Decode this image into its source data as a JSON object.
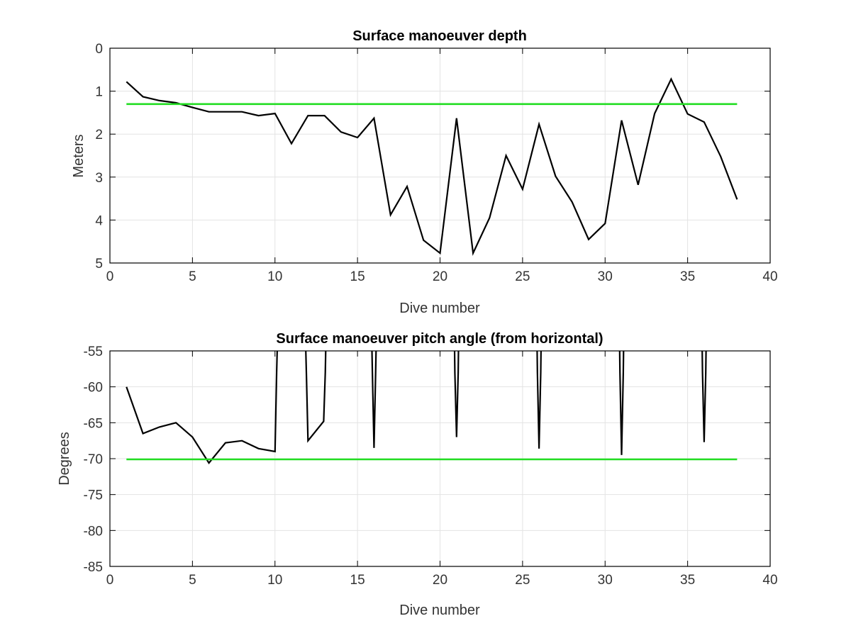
{
  "chart_data": [
    {
      "type": "line",
      "title": "Surface manoeuver depth",
      "xlabel": "Dive number",
      "ylabel": "Meters",
      "xlim": [
        0,
        40
      ],
      "ylim": [
        0,
        5
      ],
      "y_reversed": true,
      "grid": true,
      "xticks": [
        "0",
        "5",
        "10",
        "15",
        "20",
        "25",
        "30",
        "35",
        "40"
      ],
      "yticks": [
        "0",
        "1",
        "2",
        "3",
        "4",
        "5"
      ],
      "series": [
        {
          "color": "#000000",
          "x": [
            1,
            2,
            3,
            4,
            5,
            6,
            7,
            8,
            9,
            10,
            11,
            12,
            13,
            14,
            15,
            16,
            17,
            18,
            19,
            20,
            21,
            22,
            23,
            24,
            25,
            26,
            27,
            28,
            29,
            30,
            31,
            32,
            33,
            34,
            35,
            36,
            37,
            38
          ],
          "y": [
            0.78,
            1.13,
            1.22,
            1.27,
            1.38,
            1.48,
            1.48,
            1.48,
            1.57,
            1.52,
            2.22,
            1.57,
            1.57,
            1.95,
            2.08,
            1.63,
            3.88,
            3.22,
            4.47,
            4.77,
            1.63,
            4.77,
            3.95,
            2.5,
            3.28,
            1.77,
            2.98,
            3.58,
            4.45,
            4.08,
            1.68,
            3.18,
            1.52,
            0.72,
            1.53,
            1.72,
            2.52,
            3.52
          ]
        },
        {
          "color": "#22dd22",
          "x": [
            1,
            38
          ],
          "y": [
            1.3,
            1.3
          ]
        }
      ]
    },
    {
      "type": "line",
      "title": "Surface manoeuver pitch angle (from horizontal)",
      "xlabel": "Dive number",
      "ylabel": "Degrees",
      "xlim": [
        0,
        40
      ],
      "ylim": [
        -85,
        -55
      ],
      "grid": true,
      "xticks": [
        "0",
        "5",
        "10",
        "15",
        "20",
        "25",
        "30",
        "35",
        "40"
      ],
      "yticks": [
        "-55",
        "-60",
        "-65",
        "-70",
        "-75",
        "-80",
        "-85"
      ],
      "series": [
        {
          "color": "#000000",
          "x": [
            1,
            2,
            3,
            4,
            5,
            6,
            7,
            8,
            9,
            10,
            10.1,
            10.3,
            11.7,
            11.9,
            12,
            12.95,
            13.05,
            13.2,
            15.75,
            15.9,
            16,
            16.1,
            16.25,
            20.8,
            20.9,
            21,
            21.1,
            21.2,
            25.8,
            25.9,
            26,
            26.1,
            26.2,
            30.8,
            30.9,
            31,
            31.1,
            31.2,
            35.8,
            35.9,
            36,
            36.1,
            36.2
          ],
          "y": [
            -60,
            -66.5,
            -65.6,
            -65,
            -67,
            -70.6,
            -67.8,
            -67.5,
            -68.6,
            -69,
            -58,
            -40,
            -40,
            -58,
            -67.5,
            -64.8,
            -58,
            -40,
            -40,
            -58,
            -68.5,
            -58,
            -40,
            -40,
            -58,
            -67,
            -58,
            -40,
            -40,
            -58,
            -68.6,
            -58,
            -40,
            -40,
            -58,
            -69.5,
            -58,
            -40,
            -40,
            -58,
            -67.7,
            -58,
            -40
          ]
        },
        {
          "color": "#22dd22",
          "x": [
            1,
            38
          ],
          "y": [
            -70.1,
            -70.1
          ]
        }
      ]
    }
  ]
}
